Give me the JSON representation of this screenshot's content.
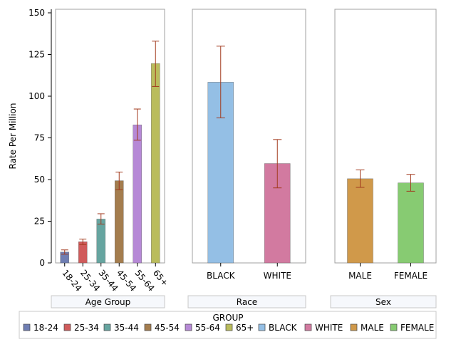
{
  "chart_data": {
    "type": "bar",
    "ylabel": "Rate Per Million",
    "ylim": [
      0,
      150
    ],
    "yticks": [
      0,
      25,
      50,
      75,
      100,
      125,
      150
    ],
    "error_bar_color": "#A23A1E",
    "panels": [
      {
        "label": "Age Group",
        "rotate_ticks": true,
        "bars": [
          {
            "category": "18-24",
            "value": 6.5,
            "lower": 5.2,
            "upper": 7.8,
            "color": "#6F7EB3"
          },
          {
            "category": "25-34",
            "value": 12.7,
            "lower": 11.0,
            "upper": 14.3,
            "color": "#D05B5B"
          },
          {
            "category": "35-44",
            "value": 26.3,
            "lower": 23.3,
            "upper": 29.5,
            "color": "#66A5A0"
          },
          {
            "category": "45-54",
            "value": 49.3,
            "lower": 43.9,
            "upper": 54.5,
            "color": "#A47D4E"
          },
          {
            "category": "55-64",
            "value": 82.8,
            "lower": 73.6,
            "upper": 92.3,
            "color": "#B689D6"
          },
          {
            "category": "65+",
            "value": 119.6,
            "lower": 105.8,
            "upper": 133.0,
            "color": "#BABC5C"
          }
        ]
      },
      {
        "label": "Race",
        "rotate_ticks": false,
        "bars": [
          {
            "category": "BLACK",
            "value": 108.4,
            "lower": 87.0,
            "upper": 130.0,
            "color": "#94BFE5"
          },
          {
            "category": "WHITE",
            "value": 59.6,
            "lower": 45.0,
            "upper": 74.0,
            "color": "#D27AA0"
          }
        ]
      },
      {
        "label": "Sex",
        "rotate_ticks": false,
        "bars": [
          {
            "category": "MALE",
            "value": 50.5,
            "lower": 45.3,
            "upper": 55.8,
            "color": "#D0994A"
          },
          {
            "category": "FEMALE",
            "value": 48.0,
            "lower": 43.0,
            "upper": 53.1,
            "color": "#87CB72"
          }
        ]
      }
    ],
    "legend": {
      "title": "GROUP",
      "position": "bottom",
      "entries": [
        {
          "label": "18-24",
          "color": "#6F7EB3"
        },
        {
          "label": "25-34",
          "color": "#D05B5B"
        },
        {
          "label": "35-44",
          "color": "#66A5A0"
        },
        {
          "label": "45-54",
          "color": "#A47D4E"
        },
        {
          "label": "55-64",
          "color": "#B689D6"
        },
        {
          "label": "65+",
          "color": "#BABC5C"
        },
        {
          "label": "BLACK",
          "color": "#94BFE5"
        },
        {
          "label": "WHITE",
          "color": "#D27AA0"
        },
        {
          "label": "MALE",
          "color": "#D0994A"
        },
        {
          "label": "FEMALE",
          "color": "#87CB72"
        }
      ]
    }
  }
}
